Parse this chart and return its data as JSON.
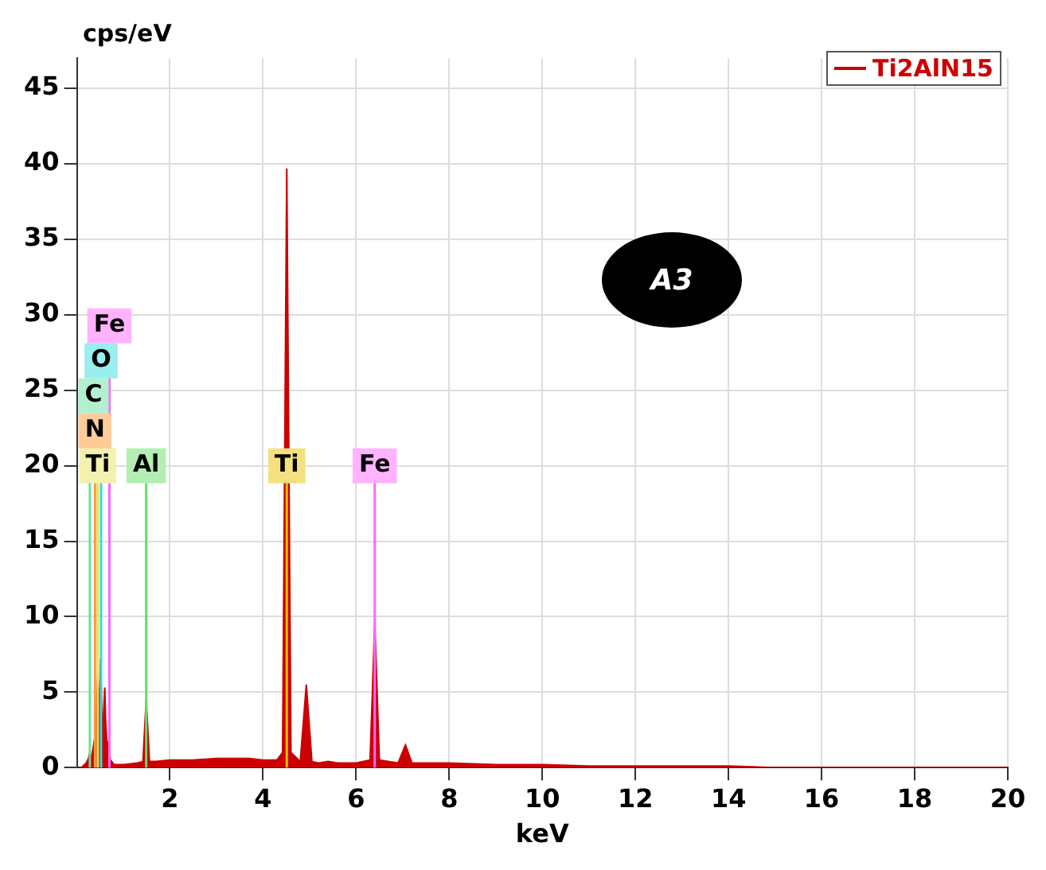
{
  "chart_data": {
    "type": "area",
    "xlabel": "keV",
    "ylabel": "cps/eV",
    "annotations": [
      "A3"
    ],
    "xlim": [
      0,
      20
    ],
    "ylim": [
      0,
      47
    ],
    "xticks": [
      2,
      4,
      6,
      8,
      10,
      12,
      14,
      16,
      18,
      20
    ],
    "yticks": [
      0,
      5,
      10,
      15,
      20,
      25,
      30,
      35,
      40,
      45
    ],
    "grid": true,
    "legend": "top right",
    "series": [
      {
        "name": "Ti2AlN15",
        "color": "#cc0000",
        "x": [
          0.1,
          0.2,
          0.25,
          0.28,
          0.31,
          0.36,
          0.39,
          0.42,
          0.45,
          0.48,
          0.51,
          0.55,
          0.6,
          0.62,
          0.65,
          0.68,
          0.72,
          0.8,
          1.0,
          1.3,
          1.42,
          1.49,
          1.56,
          1.7,
          2.0,
          2.5,
          3.0,
          3.5,
          3.7,
          4.0,
          4.3,
          4.42,
          4.51,
          4.6,
          4.8,
          4.93,
          5.05,
          5.2,
          5.4,
          5.6,
          6.0,
          6.3,
          6.4,
          6.5,
          6.9,
          7.06,
          7.2,
          7.5,
          8,
          9,
          10,
          11,
          12,
          13,
          14,
          15,
          16,
          18,
          20
        ],
        "values": [
          0,
          0.3,
          0.6,
          1.0,
          0.5,
          1.5,
          2.0,
          3.5,
          6.2,
          3.0,
          7.2,
          2.0,
          5.3,
          3.0,
          1.5,
          1.7,
          0.5,
          0.2,
          0.2,
          0.3,
          0.4,
          4.5,
          0.4,
          0.4,
          0.5,
          0.5,
          0.6,
          0.6,
          0.6,
          0.5,
          0.5,
          1.0,
          39.7,
          1.0,
          0.4,
          5.5,
          0.4,
          0.3,
          0.4,
          0.3,
          0.3,
          0.5,
          9.6,
          0.5,
          0.3,
          1.5,
          0.3,
          0.3,
          0.3,
          0.2,
          0.2,
          0.1,
          0.1,
          0.1,
          0.1,
          0,
          0,
          0,
          0
        ]
      }
    ],
    "ref_lines": [
      {
        "axis": "x",
        "value": 0.45,
        "label": "Ti",
        "color": "#e8e060"
      },
      {
        "axis": "x",
        "value": 0.39,
        "label": "N",
        "color": "#ff9933"
      },
      {
        "axis": "x",
        "value": 0.28,
        "label": "C",
        "color": "#66e0a0"
      },
      {
        "axis": "x",
        "value": 0.52,
        "label": "O",
        "color": "#33dddd"
      },
      {
        "axis": "x",
        "value": 0.7,
        "label": "Fe",
        "color": "#ff66ff"
      },
      {
        "axis": "x",
        "value": 1.49,
        "label": "Al",
        "color": "#66dd66"
      },
      {
        "axis": "x",
        "value": 4.51,
        "label": "Ti",
        "color": "#e8c000"
      },
      {
        "axis": "x",
        "value": 6.4,
        "label": "Fe",
        "color": "#ff66ff"
      }
    ]
  }
}
